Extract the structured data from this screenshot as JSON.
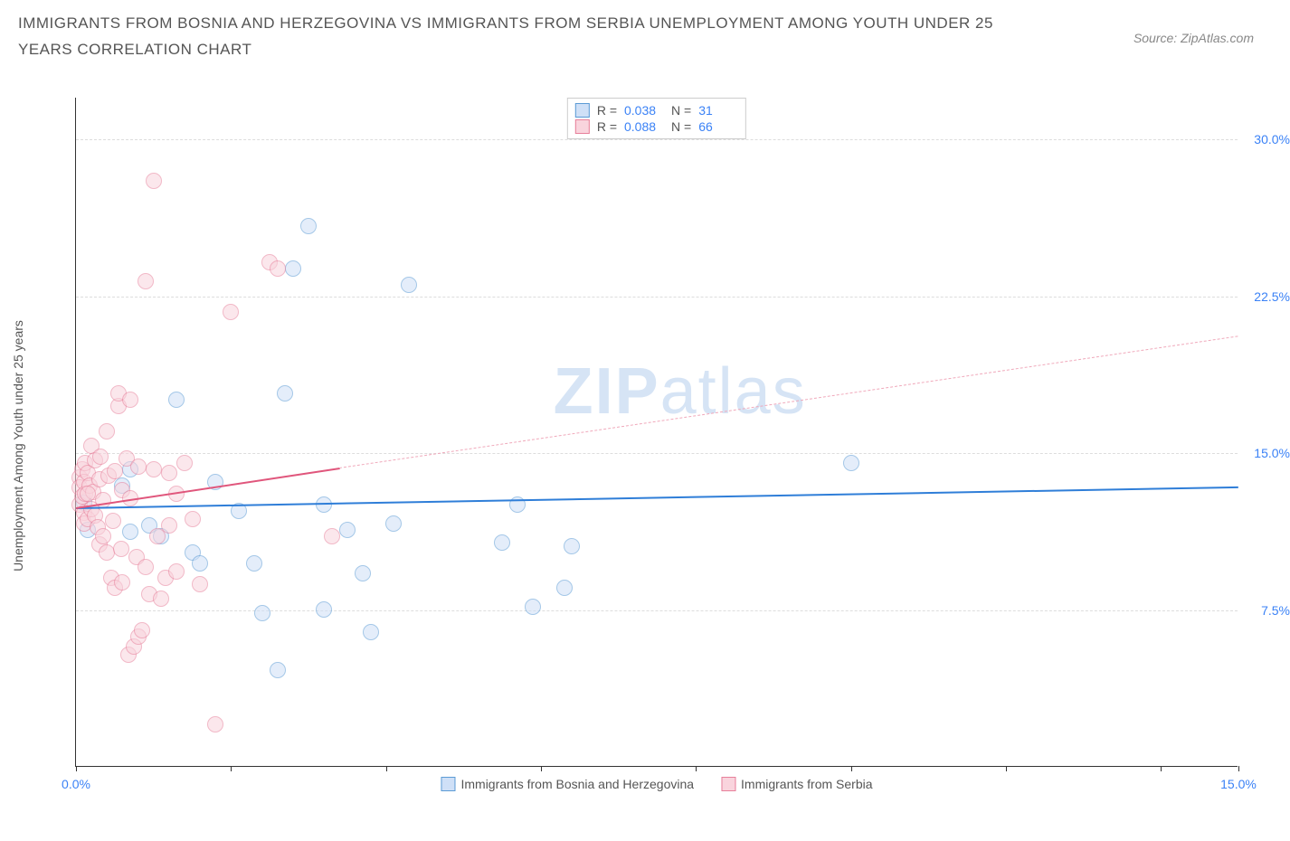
{
  "title": "IMMIGRANTS FROM BOSNIA AND HERZEGOVINA VS IMMIGRANTS FROM SERBIA UNEMPLOYMENT AMONG YOUTH UNDER 25 YEARS CORRELATION CHART",
  "source": "Source: ZipAtlas.com",
  "ylabel": "Unemployment Among Youth under 25 years",
  "watermark_zip": "ZIP",
  "watermark_atlas": "atlas",
  "chart": {
    "type": "scatter",
    "background_color": "#ffffff",
    "grid_color": "#dddddd",
    "axis_color": "#333333",
    "tick_label_color": "#3b82f6",
    "xlim": [
      0,
      15
    ],
    "ylim": [
      0,
      32
    ],
    "xticks": [
      0,
      2,
      4,
      6,
      8,
      10,
      12,
      14,
      15
    ],
    "xtick_labels": {
      "0": "0.0%",
      "15": "15.0%"
    },
    "yticks": [
      7.5,
      15.0,
      22.5,
      30.0
    ],
    "ytick_labels": [
      "7.5%",
      "15.0%",
      "22.5%",
      "30.0%"
    ],
    "point_radius": 9,
    "point_border_width": 1.5,
    "series": [
      {
        "name": "Immigrants from Bosnia and Herzegovina",
        "fill": "#cfe0f7",
        "stroke": "#5b9bd5",
        "fill_opacity": 0.55,
        "R": "0.038",
        "N": "31",
        "trend": {
          "x1": 0,
          "y1": 12.4,
          "x2": 15,
          "y2": 13.4,
          "color": "#2f7ed8",
          "width": 2,
          "dash": "solid"
        },
        "points": [
          [
            0.1,
            12.6
          ],
          [
            0.15,
            11.3
          ],
          [
            0.6,
            13.4
          ],
          [
            0.7,
            11.2
          ],
          [
            0.7,
            14.2
          ],
          [
            1.1,
            11.0
          ],
          [
            1.3,
            17.5
          ],
          [
            1.5,
            10.2
          ],
          [
            1.6,
            9.7
          ],
          [
            1.8,
            13.6
          ],
          [
            2.1,
            12.2
          ],
          [
            2.3,
            9.7
          ],
          [
            2.4,
            7.3
          ],
          [
            2.6,
            4.6
          ],
          [
            2.7,
            17.8
          ],
          [
            2.8,
            23.8
          ],
          [
            3.0,
            25.8
          ],
          [
            3.2,
            7.5
          ],
          [
            3.2,
            12.5
          ],
          [
            3.5,
            11.3
          ],
          [
            3.7,
            9.2
          ],
          [
            3.8,
            6.4
          ],
          [
            4.1,
            11.6
          ],
          [
            4.3,
            23.0
          ],
          [
            5.5,
            10.7
          ],
          [
            5.7,
            12.5
          ],
          [
            5.9,
            7.6
          ],
          [
            6.3,
            8.5
          ],
          [
            6.4,
            10.5
          ],
          [
            10.0,
            14.5
          ],
          [
            0.95,
            11.5
          ]
        ]
      },
      {
        "name": "Immigrants from Serbia",
        "fill": "#f9d4dd",
        "stroke": "#e77f9a",
        "fill_opacity": 0.55,
        "R": "0.088",
        "N": "66",
        "trend_solid": {
          "x1": 0,
          "y1": 12.4,
          "x2": 3.4,
          "y2": 14.3,
          "color": "#e0567c",
          "width": 2,
          "dash": "solid"
        },
        "trend_dash": {
          "x1": 3.4,
          "y1": 14.3,
          "x2": 15,
          "y2": 20.6,
          "color": "#f0a9bb",
          "width": 1.5,
          "dash": "dashed"
        },
        "points": [
          [
            0.05,
            13.8
          ],
          [
            0.05,
            13.3
          ],
          [
            0.05,
            12.5
          ],
          [
            0.08,
            14.2
          ],
          [
            0.08,
            12.9
          ],
          [
            0.1,
            13.6
          ],
          [
            0.1,
            12.1
          ],
          [
            0.1,
            11.6
          ],
          [
            0.12,
            14.5
          ],
          [
            0.12,
            13.0
          ],
          [
            0.15,
            14.0
          ],
          [
            0.15,
            11.8
          ],
          [
            0.18,
            13.4
          ],
          [
            0.2,
            15.3
          ],
          [
            0.2,
            12.3
          ],
          [
            0.22,
            13.1
          ],
          [
            0.25,
            14.6
          ],
          [
            0.25,
            12.0
          ],
          [
            0.28,
            11.4
          ],
          [
            0.3,
            13.7
          ],
          [
            0.3,
            10.6
          ],
          [
            0.32,
            14.8
          ],
          [
            0.35,
            12.7
          ],
          [
            0.35,
            11.0
          ],
          [
            0.4,
            16.0
          ],
          [
            0.4,
            10.2
          ],
          [
            0.42,
            13.9
          ],
          [
            0.45,
            9.0
          ],
          [
            0.48,
            11.7
          ],
          [
            0.5,
            14.1
          ],
          [
            0.5,
            8.5
          ],
          [
            0.55,
            17.2
          ],
          [
            0.55,
            17.8
          ],
          [
            0.58,
            10.4
          ],
          [
            0.6,
            13.2
          ],
          [
            0.6,
            8.8
          ],
          [
            0.65,
            14.7
          ],
          [
            0.68,
            5.3
          ],
          [
            0.7,
            17.5
          ],
          [
            0.7,
            12.8
          ],
          [
            0.75,
            5.7
          ],
          [
            0.78,
            10.0
          ],
          [
            0.8,
            14.3
          ],
          [
            0.8,
            6.2
          ],
          [
            0.85,
            6.5
          ],
          [
            0.9,
            23.2
          ],
          [
            0.9,
            9.5
          ],
          [
            0.95,
            8.2
          ],
          [
            1.0,
            28.0
          ],
          [
            1.0,
            14.2
          ],
          [
            1.05,
            11.0
          ],
          [
            1.1,
            8.0
          ],
          [
            1.15,
            9.0
          ],
          [
            1.2,
            14.0
          ],
          [
            1.2,
            11.5
          ],
          [
            1.3,
            13.0
          ],
          [
            1.3,
            9.3
          ],
          [
            1.4,
            14.5
          ],
          [
            1.5,
            11.8
          ],
          [
            1.6,
            8.7
          ],
          [
            1.8,
            2.0
          ],
          [
            2.0,
            21.7
          ],
          [
            2.5,
            24.1
          ],
          [
            2.6,
            23.8
          ],
          [
            3.3,
            11.0
          ],
          [
            0.15,
            13.0
          ]
        ]
      }
    ],
    "legend": {
      "top_box_labels": {
        "R": "R =",
        "N": "N ="
      }
    }
  }
}
